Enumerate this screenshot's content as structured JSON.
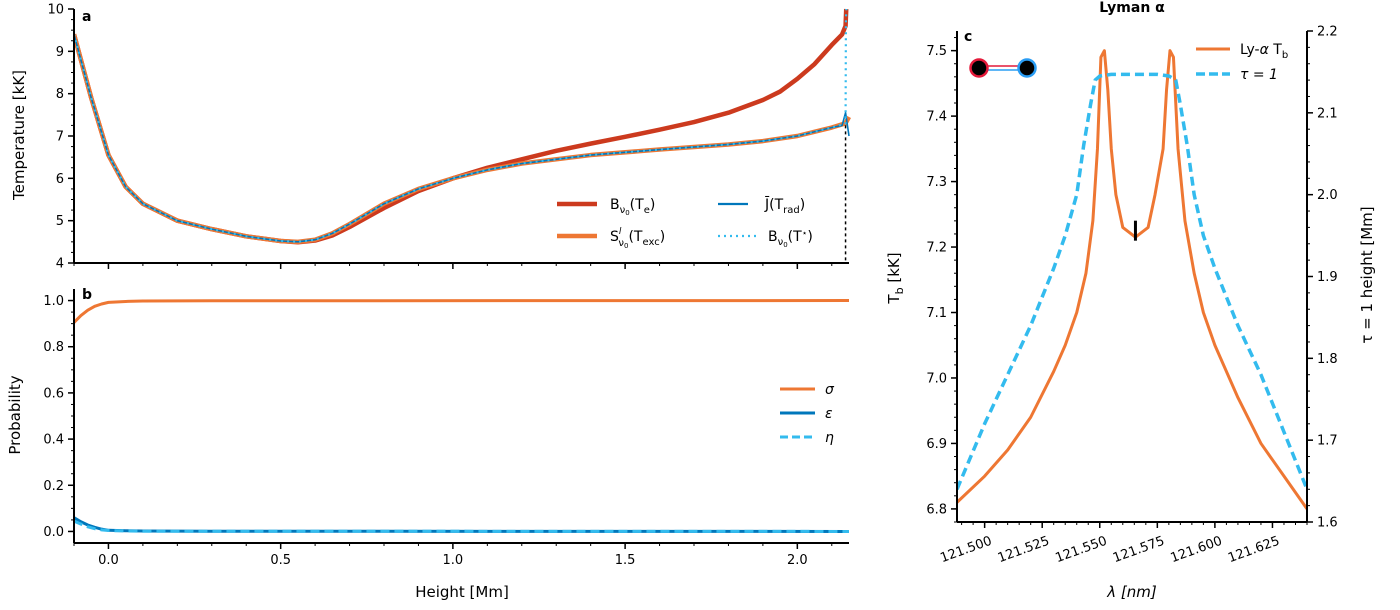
{
  "colors": {
    "dark_red": "#cc3a1e",
    "orange": "#ee7733",
    "blue": "#0077bb",
    "cyan": "#33bbee",
    "atom_red": "#e41a3a",
    "atom_blue": "#2a9df4"
  },
  "chart_data": [
    {
      "panel": "a",
      "type": "line",
      "xlabel": "Height [Mm]",
      "ylabel": "Temperature [kK]",
      "xlim": [
        -0.1,
        2.15
      ],
      "ylim": [
        4,
        10
      ],
      "xticks": [
        0.0,
        0.5,
        1.0,
        1.5,
        2.0
      ],
      "xtick_labels": [
        "0.0",
        "0.5",
        "1.0",
        "1.5",
        "2.0"
      ],
      "yticks": [
        4,
        5,
        6,
        7,
        8,
        9,
        10
      ],
      "ytick_labels": [
        "4",
        "5",
        "6",
        "7",
        "8",
        "9",
        "10"
      ],
      "tick_label_visibility": {
        "x": false,
        "y": true
      },
      "legend_position": "lower-right",
      "vertical_marker_x": 2.14,
      "series": [
        {
          "name_key": "B_e",
          "color": "#cc3a1e",
          "style": "solid",
          "width": 4.5,
          "x": [
            -0.1,
            -0.05,
            0,
            0.05,
            0.1,
            0.2,
            0.3,
            0.4,
            0.5,
            0.55,
            0.6,
            0.65,
            0.7,
            0.8,
            0.9,
            1.0,
            1.1,
            1.2,
            1.3,
            1.4,
            1.5,
            1.6,
            1.7,
            1.8,
            1.9,
            1.95,
            2.0,
            2.05,
            2.1,
            2.13,
            2.14,
            2.142
          ],
          "y": [
            9.4,
            7.9,
            6.55,
            5.8,
            5.4,
            5.0,
            4.8,
            4.63,
            4.52,
            4.49,
            4.53,
            4.65,
            4.85,
            5.3,
            5.7,
            6.0,
            6.25,
            6.45,
            6.65,
            6.82,
            6.98,
            7.15,
            7.33,
            7.55,
            7.85,
            8.05,
            8.35,
            8.7,
            9.15,
            9.4,
            9.6,
            10.0
          ]
        },
        {
          "name_key": "S_exc",
          "color": "#ee7733",
          "style": "solid",
          "width": 4.5,
          "x": [
            -0.1,
            -0.05,
            0,
            0.05,
            0.1,
            0.2,
            0.3,
            0.4,
            0.5,
            0.55,
            0.6,
            0.65,
            0.7,
            0.8,
            0.9,
            1.0,
            1.1,
            1.2,
            1.4,
            1.6,
            1.8,
            1.9,
            2.0,
            2.1,
            2.14,
            2.15
          ],
          "y": [
            9.4,
            7.9,
            6.55,
            5.8,
            5.4,
            5.0,
            4.8,
            4.63,
            4.52,
            4.5,
            4.55,
            4.7,
            4.92,
            5.4,
            5.75,
            6.0,
            6.2,
            6.35,
            6.55,
            6.68,
            6.8,
            6.88,
            7.0,
            7.2,
            7.3,
            7.45
          ]
        },
        {
          "name_key": "J_rad",
          "color": "#0077bb",
          "style": "solid",
          "width": 1.6,
          "x": [
            -0.1,
            -0.05,
            0,
            0.05,
            0.1,
            0.2,
            0.3,
            0.4,
            0.5,
            0.55,
            0.6,
            0.65,
            0.7,
            0.8,
            0.9,
            1.0,
            1.1,
            1.2,
            1.4,
            1.6,
            1.8,
            1.9,
            2.0,
            2.1,
            2.13,
            2.14,
            2.15
          ],
          "y": [
            9.4,
            7.9,
            6.55,
            5.8,
            5.4,
            5.0,
            4.8,
            4.63,
            4.52,
            4.5,
            4.55,
            4.7,
            4.92,
            5.4,
            5.75,
            6.0,
            6.2,
            6.35,
            6.55,
            6.68,
            6.8,
            6.88,
            7.0,
            7.2,
            7.25,
            7.55,
            7.0
          ]
        },
        {
          "name_key": "B_star",
          "color": "#33bbee",
          "style": "dotted",
          "width": 2.2,
          "x": [
            -0.1,
            -0.05,
            0,
            0.05,
            0.1,
            0.2,
            0.3,
            0.4,
            0.5,
            0.55,
            0.6,
            0.65,
            0.7,
            0.8,
            0.9,
            1.0,
            1.1,
            1.2,
            1.4,
            1.6,
            1.8,
            1.9,
            2.0,
            2.1,
            2.14,
            2.141,
            2.142
          ],
          "y": [
            9.4,
            7.9,
            6.55,
            5.8,
            5.4,
            5.0,
            4.8,
            4.63,
            4.52,
            4.5,
            4.55,
            4.7,
            4.92,
            5.4,
            5.75,
            6.0,
            6.2,
            6.35,
            6.55,
            6.68,
            6.8,
            6.88,
            7.0,
            7.2,
            7.3,
            9.6,
            10.0
          ]
        }
      ]
    },
    {
      "panel": "b",
      "type": "line",
      "xlabel": "Height [Mm]",
      "ylabel": "Probability",
      "xlim": [
        -0.1,
        2.15
      ],
      "ylim": [
        -0.05,
        1.05
      ],
      "xticks": [
        0.0,
        0.5,
        1.0,
        1.5,
        2.0
      ],
      "xtick_labels": [
        "0.0",
        "0.5",
        "1.0",
        "1.5",
        "2.0"
      ],
      "yticks": [
        0.0,
        0.2,
        0.4,
        0.6,
        0.8,
        1.0
      ],
      "ytick_labels": [
        "0.0",
        "0.2",
        "0.4",
        "0.6",
        "0.8",
        "1.0"
      ],
      "legend_position": "center-right",
      "series": [
        {
          "name": "σ",
          "color": "#ee7733",
          "style": "solid",
          "width": 3,
          "x": [
            -0.1,
            -0.08,
            -0.06,
            -0.04,
            -0.02,
            0,
            0.05,
            0.1,
            0.3,
            2.15
          ],
          "y": [
            0.905,
            0.935,
            0.958,
            0.975,
            0.985,
            0.992,
            0.996,
            0.998,
            0.999,
            1.0
          ]
        },
        {
          "name": "ε",
          "color": "#0077bb",
          "style": "solid",
          "width": 3,
          "x": [
            -0.1,
            -0.08,
            -0.06,
            -0.04,
            -0.02,
            0,
            0.05,
            0.1,
            0.3,
            2.15
          ],
          "y": [
            0.06,
            0.042,
            0.028,
            0.018,
            0.01,
            0.005,
            0.003,
            0.002,
            0.001,
            0.0
          ]
        },
        {
          "name": "η",
          "color": "#33bbee",
          "style": "dashed",
          "width": 3,
          "x": [
            -0.1,
            -0.08,
            -0.06,
            -0.04,
            -0.02,
            0,
            0.05,
            0.1,
            0.3,
            2.15
          ],
          "y": [
            0.045,
            0.032,
            0.02,
            0.012,
            0.007,
            0.004,
            0.002,
            0.001,
            0.001,
            0.0
          ]
        }
      ]
    },
    {
      "panel": "c",
      "type": "line",
      "title": "Lyman α",
      "xlabel": "λ [nm]",
      "ylabel_left": "T",
      "ylabel_left_sub": "b",
      "ylabel_left_tail": " [kK]",
      "ylabel_right": "τ = 1 height [Mm]",
      "xlim": [
        121.488,
        121.64
      ],
      "ylim_left": [
        6.78,
        7.53
      ],
      "ylim_right": [
        1.6,
        2.2
      ],
      "xticks": [
        121.5,
        121.525,
        121.55,
        121.575,
        121.6,
        121.625
      ],
      "xtick_labels": [
        "121.500",
        "121.525",
        "121.550",
        "121.575",
        "121.600",
        "121.625"
      ],
      "yticks_left": [
        6.8,
        6.9,
        7.0,
        7.1,
        7.2,
        7.3,
        7.4,
        7.5
      ],
      "ytick_labels_left": [
        "6.8",
        "6.9",
        "7.0",
        "7.1",
        "7.2",
        "7.3",
        "7.4",
        "7.5"
      ],
      "yticks_right": [
        1.6,
        1.7,
        1.8,
        1.9,
        2.0,
        2.1,
        2.2
      ],
      "ytick_labels_right": [
        "1.6",
        "1.7",
        "1.8",
        "1.9",
        "2.0",
        "2.1",
        "2.2"
      ],
      "legend_position": "top-right",
      "marker": {
        "x": 121.5655,
        "y": 7.225
      },
      "series": [
        {
          "name_key": "Ly_Tb",
          "axis": "left",
          "color": "#ee7733",
          "style": "solid",
          "width": 3,
          "x": [
            121.488,
            121.5,
            121.51,
            121.52,
            121.53,
            121.535,
            121.54,
            121.544,
            121.547,
            121.549,
            121.5505,
            121.552,
            121.5535,
            121.555,
            121.557,
            121.56,
            121.5655,
            121.571,
            121.574,
            121.5775,
            121.579,
            121.5805,
            121.582,
            121.584,
            121.587,
            121.591,
            121.595,
            121.6,
            121.61,
            121.62,
            121.63,
            121.64
          ],
          "y": [
            6.81,
            6.85,
            6.89,
            6.94,
            7.01,
            7.05,
            7.1,
            7.16,
            7.24,
            7.35,
            7.49,
            7.5,
            7.44,
            7.35,
            7.28,
            7.23,
            7.215,
            7.23,
            7.28,
            7.35,
            7.44,
            7.5,
            7.49,
            7.35,
            7.24,
            7.16,
            7.1,
            7.05,
            6.97,
            6.9,
            6.85,
            6.8
          ]
        },
        {
          "name_key": "tau",
          "axis": "right",
          "color": "#33bbee",
          "style": "dashed",
          "width": 3.5,
          "x": [
            121.488,
            121.5,
            121.51,
            121.52,
            121.53,
            121.535,
            121.54,
            121.543,
            121.546,
            121.548,
            121.55,
            121.555,
            121.565,
            121.575,
            121.58,
            121.583,
            121.585,
            121.588,
            121.591,
            121.595,
            121.6,
            121.61,
            121.62,
            121.63,
            121.64
          ],
          "y": [
            1.64,
            1.72,
            1.78,
            1.84,
            1.91,
            1.95,
            2.0,
            2.06,
            2.11,
            2.14,
            2.145,
            2.147,
            2.147,
            2.147,
            2.145,
            2.14,
            2.11,
            2.06,
            2.0,
            1.95,
            1.91,
            1.84,
            1.78,
            1.71,
            1.64
          ]
        }
      ]
    }
  ],
  "panel_letters": {
    "a": "a",
    "b": "b",
    "c": "c"
  },
  "legend_a": {
    "B_e": {
      "main": "B",
      "sub": "ν",
      "subsub": "0",
      "tail_open": "(T",
      "tail_sub": "e",
      "tail_close": ")"
    },
    "S_exc": {
      "main": "S",
      "sup": "l",
      "sub": "ν",
      "subsub": "0",
      "tail_open": "(T",
      "tail_sub": "exc",
      "tail_close": ")"
    },
    "J_rad": {
      "main": "J̄(T",
      "tail_sub": "rad",
      "tail_close": ")"
    },
    "B_star": {
      "main": "B",
      "sub": "ν",
      "subsub": "0",
      "tail_open": "(T",
      "tail_sup": "⋆",
      "tail_close": ")"
    }
  },
  "legend_c": {
    "Ly_Tb": {
      "main": "Ly-",
      "greek": "α",
      "mid": " T",
      "sub": "b"
    },
    "tau": {
      "main": "τ = 1"
    }
  }
}
